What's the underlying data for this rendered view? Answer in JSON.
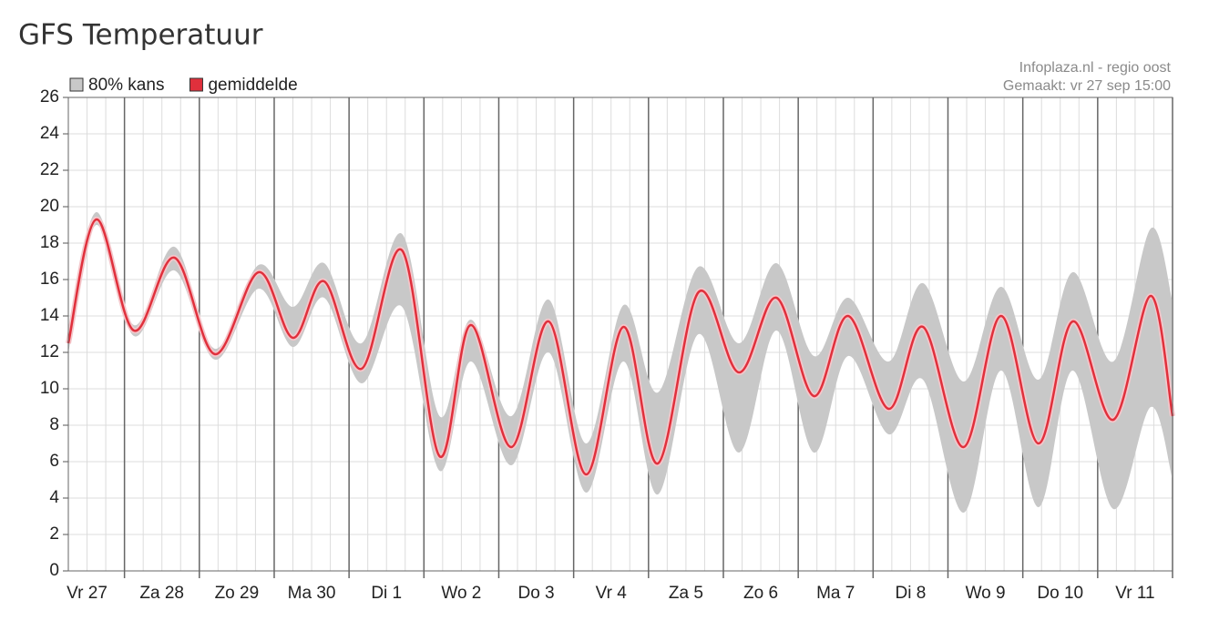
{
  "chart_data": {
    "type": "band-line",
    "title": "GFS Temperatuur",
    "annotations": [
      "Infoplaza.nl - regio oost",
      "Gemaakt: vr 27 sep 15:00"
    ],
    "x": [
      6,
      15,
      27,
      40,
      53,
      67,
      78,
      88,
      100,
      113,
      125,
      135,
      148,
      160,
      172,
      184,
      195,
      208,
      221,
      233,
      245,
      256,
      269,
      280,
      293,
      305,
      317,
      328,
      341,
      353,
      360
    ],
    "xlim": [
      6,
      360
    ],
    "xticks": [
      {
        "value": 12,
        "label": "Vr 27"
      },
      {
        "value": 36,
        "label": "Za 28"
      },
      {
        "value": 60,
        "label": "Zo 29"
      },
      {
        "value": 84,
        "label": "Ma 30"
      },
      {
        "value": 108,
        "label": "Di 1"
      },
      {
        "value": 132,
        "label": "Wo 2"
      },
      {
        "value": 156,
        "label": "Do 3"
      },
      {
        "value": 180,
        "label": "Vr 4"
      },
      {
        "value": 204,
        "label": "Za 5"
      },
      {
        "value": 228,
        "label": "Zo 6"
      },
      {
        "value": 252,
        "label": "Ma 7"
      },
      {
        "value": 276,
        "label": "Di 8"
      },
      {
        "value": 300,
        "label": "Wo 9"
      },
      {
        "value": 324,
        "label": "Do 10"
      },
      {
        "value": 348,
        "label": "Vr 11"
      }
    ],
    "ylim": [
      0,
      26
    ],
    "yticks": [
      0,
      2,
      4,
      6,
      8,
      10,
      12,
      14,
      16,
      18,
      20,
      22,
      24,
      26
    ],
    "grid": true,
    "legend": "top-left",
    "series": [
      {
        "name": "80% kans",
        "color": "#c8c8c8",
        "low": [
          12,
          19,
          12.9,
          16.5,
          11.6,
          15.5,
          12.3,
          15,
          10.3,
          14.5,
          5.5,
          11.5,
          5.8,
          12,
          4.3,
          11.5,
          4.2,
          13,
          6.5,
          13.2,
          6.5,
          11.8,
          7.5,
          10.5,
          3.2,
          11,
          3.5,
          11,
          3.4,
          9,
          5
        ],
        "high": [
          13,
          19.7,
          13.5,
          17.8,
          12.2,
          16.8,
          14.5,
          16.9,
          12.5,
          18.5,
          8.5,
          13.8,
          8.5,
          14.9,
          7,
          14.6,
          9.8,
          16.7,
          12.5,
          16.9,
          11.8,
          15,
          11.5,
          15.8,
          10.4,
          15.6,
          10.5,
          16.4,
          11.5,
          18.8,
          14.8
        ]
      },
      {
        "name": "gemiddelde",
        "color": "#e0303c",
        "values": [
          12.5,
          19.3,
          13.2,
          17.2,
          11.9,
          16.4,
          12.8,
          15.9,
          11.1,
          17.6,
          6.3,
          13.5,
          6.8,
          13.7,
          5.3,
          13.4,
          5.9,
          15.3,
          10.9,
          15.0,
          9.6,
          14.0,
          8.9,
          13.4,
          6.8,
          14.0,
          7.0,
          13.7,
          8.3,
          15.1,
          8.5
        ]
      }
    ]
  }
}
